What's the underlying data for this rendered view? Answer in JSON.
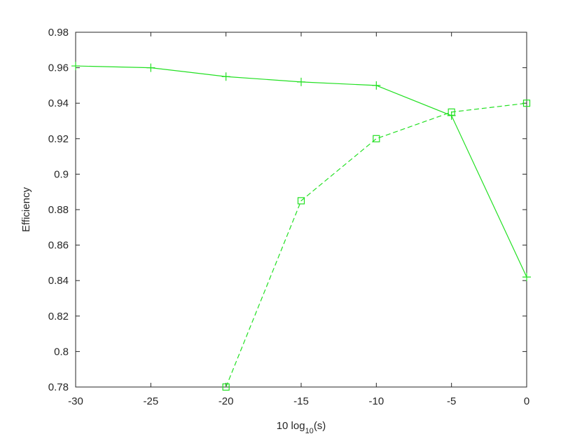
{
  "chart_data": {
    "type": "line",
    "xlabel": [
      "10 log",
      "10",
      "(s)"
    ],
    "ylabel": "Efficiency",
    "xlim": [
      -30,
      0
    ],
    "xticks": [
      -30,
      -25,
      -20,
      -15,
      -10,
      -5,
      0
    ],
    "ylim": [
      0.78,
      0.98
    ],
    "yticks": [
      0.78,
      0.8,
      0.82,
      0.84,
      0.86,
      0.88,
      0.9,
      0.92,
      0.94,
      0.96,
      0.98
    ],
    "grid": false,
    "series": [
      {
        "color": "#22e022",
        "linestyle": "solid",
        "marker": "+",
        "x": [
          -30,
          -25,
          -20,
          -15,
          -10,
          -5,
          0
        ],
        "values": [
          0.961,
          0.96,
          0.955,
          0.952,
          0.95,
          0.933,
          0.842
        ]
      },
      {
        "color": "#22e022",
        "linestyle": "dashed",
        "marker": "square",
        "x": [
          -20,
          -15,
          -10,
          -5,
          0
        ],
        "values": [
          0.78,
          0.885,
          0.92,
          0.935,
          0.94
        ]
      }
    ]
  }
}
